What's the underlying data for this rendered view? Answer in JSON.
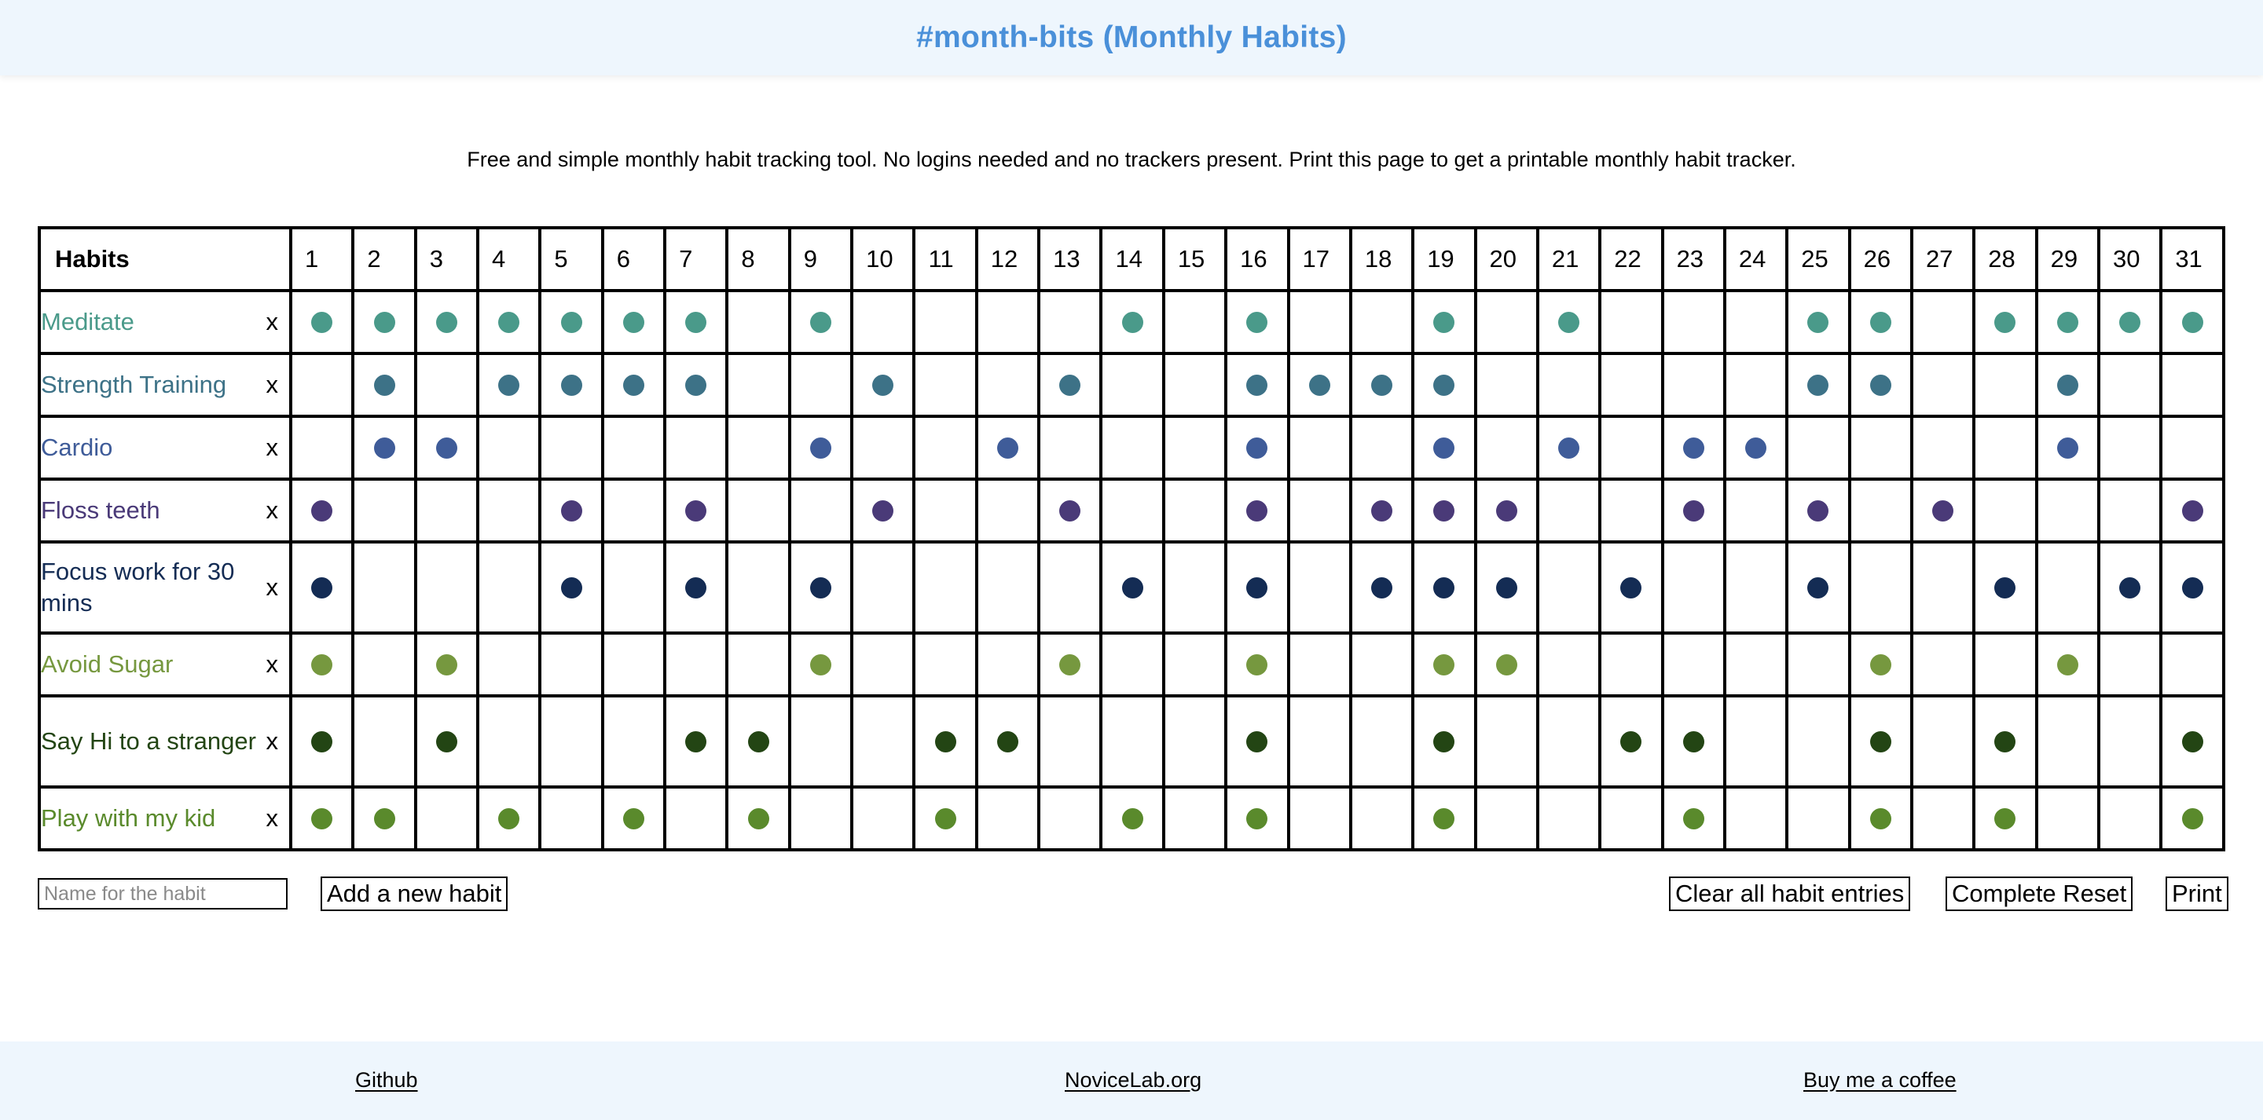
{
  "header": {
    "title": "#month-bits (Monthly Habits)"
  },
  "intro": "Free and simple monthly habit tracking tool. No logins needed and no trackers present. Print this page to get a printable monthly habit tracker.",
  "table": {
    "habits_header": "Habits",
    "days": [
      "1",
      "2",
      "3",
      "4",
      "5",
      "6",
      "7",
      "8",
      "9",
      "10",
      "11",
      "12",
      "13",
      "14",
      "15",
      "16",
      "17",
      "18",
      "19",
      "20",
      "21",
      "22",
      "23",
      "24",
      "25",
      "26",
      "27",
      "28",
      "29",
      "30",
      "31"
    ],
    "remove_label": "x",
    "habits": [
      {
        "name": "Meditate",
        "color": "#4a9a8a",
        "checked": [
          1,
          2,
          3,
          4,
          5,
          6,
          7,
          9,
          14,
          16,
          19,
          21,
          25,
          26,
          28,
          29,
          30,
          31
        ]
      },
      {
        "name": "Strength Training",
        "color": "#3d7287",
        "checked": [
          2,
          4,
          5,
          6,
          7,
          10,
          13,
          16,
          17,
          18,
          19,
          25,
          26,
          29
        ]
      },
      {
        "name": "Cardio",
        "color": "#3f5c99",
        "checked": [
          2,
          3,
          9,
          12,
          16,
          19,
          21,
          23,
          24,
          29
        ]
      },
      {
        "name": "Floss teeth",
        "color": "#4a3a78",
        "checked": [
          1,
          5,
          7,
          10,
          13,
          16,
          18,
          19,
          20,
          23,
          25,
          27,
          31
        ]
      },
      {
        "name": "Focus work for 30 mins",
        "color": "#142c54",
        "checked": [
          1,
          5,
          7,
          9,
          14,
          16,
          18,
          19,
          20,
          22,
          25,
          28,
          30,
          31
        ]
      },
      {
        "name": "Avoid Sugar",
        "color": "#76983f",
        "checked": [
          1,
          3,
          9,
          13,
          16,
          19,
          20,
          26,
          29
        ]
      },
      {
        "name": "Say Hi to a stranger",
        "color": "#234514",
        "checked": [
          1,
          3,
          7,
          8,
          11,
          12,
          16,
          19,
          22,
          23,
          26,
          28,
          31
        ]
      },
      {
        "name": "Play with my kid",
        "color": "#5a8a2c",
        "checked": [
          1,
          2,
          4,
          6,
          8,
          11,
          14,
          16,
          19,
          23,
          26,
          28,
          31
        ]
      }
    ]
  },
  "controls": {
    "input_placeholder": "Name for the habit",
    "add_label": "Add a new habit",
    "clear_label": "Clear all habit entries",
    "reset_label": "Complete Reset",
    "print_label": "Print"
  },
  "footer": {
    "github": "Github",
    "novicelab": "NoviceLab.org",
    "coffee": "Buy me a coffee"
  }
}
